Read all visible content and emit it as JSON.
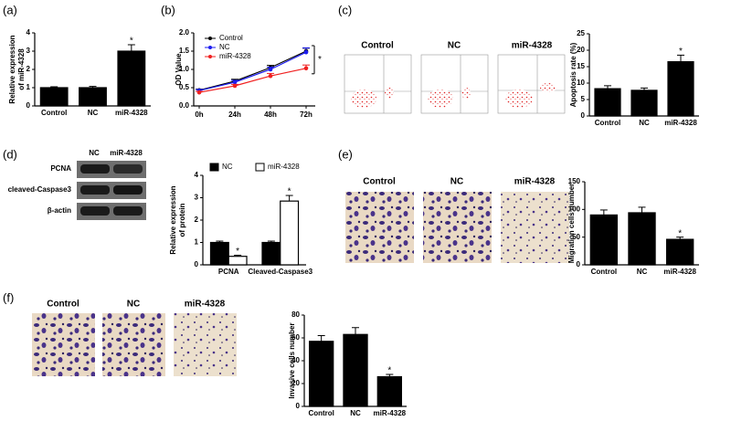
{
  "chart_data": [
    {
      "type": "bar",
      "y_label": [
        "Relative expression",
        "of miR-4328"
      ],
      "categories": [
        "Control",
        "NC",
        "miR-4328"
      ],
      "values": [
        1.0,
        1.0,
        3.0
      ],
      "errors": [
        0.05,
        0.07,
        0.35
      ],
      "color": "#000000",
      "ylim": [
        0,
        4
      ],
      "yticks": [
        0,
        1,
        2,
        3,
        4
      ],
      "annotations": [
        {
          "text": "*",
          "category": "miR-4328"
        }
      ]
    },
    {
      "type": "line",
      "y_label": [
        "OD Value"
      ],
      "categories": [
        "0h",
        "24h",
        "48h",
        "72h"
      ],
      "series": [
        {
          "name": "Control",
          "color": "#000000",
          "values": [
            0.43,
            0.68,
            1.05,
            1.5
          ],
          "errors": [
            0.03,
            0.05,
            0.06,
            0.08
          ]
        },
        {
          "name": "NC",
          "color": "#1c1cf0",
          "values": [
            0.42,
            0.65,
            1.0,
            1.47
          ],
          "errors": [
            0.03,
            0.05,
            0.06,
            0.12
          ]
        },
        {
          "name": "miR-4328",
          "color": "#f02020",
          "values": [
            0.37,
            0.55,
            0.82,
            1.03
          ],
          "errors": [
            0.03,
            0.04,
            0.07,
            0.09
          ]
        }
      ],
      "ylim": [
        0,
        2
      ],
      "yticks": [
        {
          "value": 0,
          "label": "0.0"
        },
        {
          "value": 0.5,
          "label": "0.5"
        },
        {
          "value": 1,
          "label": "1.0"
        },
        {
          "value": 1.5,
          "label": "1.5"
        },
        {
          "value": 2,
          "label": "2.0"
        }
      ],
      "legend": "upper left",
      "annotations": [
        {
          "text": "*"
        }
      ]
    },
    {
      "type": "bar",
      "y_label": [
        "Apoptosis rate (%)"
      ],
      "categories": [
        "Control",
        "NC",
        "miR-4328"
      ],
      "values": [
        8.3,
        7.8,
        16.5
      ],
      "errors": [
        0.9,
        0.7,
        2.0
      ],
      "color": "#000000",
      "ylim": [
        0,
        25
      ],
      "yticks": [
        0,
        5,
        10,
        15,
        20,
        25
      ],
      "annotations": [
        {
          "text": "*",
          "category": "miR-4328"
        }
      ]
    },
    {
      "type": "bar",
      "y_label": [
        "Relative expression",
        "of protein"
      ],
      "categories": [
        "PCNA",
        "Cleaved-Caspase3"
      ],
      "series": [
        {
          "name": "NC",
          "color": "#000000",
          "values": [
            1.0,
            1.0
          ],
          "errors": [
            0.06,
            0.06
          ]
        },
        {
          "name": "miR-4328",
          "color": "#ffffff",
          "values": [
            0.38,
            2.85
          ],
          "errors": [
            0.05,
            0.25
          ]
        }
      ],
      "ylim": [
        0,
        4
      ],
      "yticks": [
        0,
        1,
        2,
        3,
        4
      ],
      "legend": "top",
      "annotations": [
        {
          "text": "*",
          "category": "PCNA",
          "series": "miR-4328"
        },
        {
          "text": "*",
          "category": "Cleaved-Caspase3",
          "series": "miR-4328"
        }
      ]
    },
    {
      "type": "bar",
      "y_label": [
        "Migration cells number"
      ],
      "categories": [
        "Control",
        "NC",
        "miR-4328"
      ],
      "values": [
        90,
        94,
        46
      ],
      "errors": [
        9,
        10,
        4
      ],
      "color": "#000000",
      "ylim": [
        0,
        150
      ],
      "yticks": [
        0,
        50,
        100,
        150
      ],
      "annotations": [
        {
          "text": "*",
          "category": "miR-4328"
        }
      ]
    },
    {
      "type": "bar",
      "y_label": [
        "Invasive cells number"
      ],
      "categories": [
        "Control",
        "NC",
        "miR-4328"
      ],
      "values": [
        57,
        63,
        26
      ],
      "errors": [
        5,
        6,
        2
      ],
      "color": "#000000",
      "ylim": [
        0,
        80
      ],
      "yticks": [
        0,
        20,
        40,
        60,
        80
      ],
      "annotations": [
        {
          "text": "*",
          "category": "miR-4328"
        }
      ]
    }
  ],
  "figure": {
    "panel_labels": [
      "(a)",
      "(b)",
      "(c)",
      "(d)",
      "(e)",
      "(f)"
    ],
    "flow_titles": [
      "Control",
      "NC",
      "miR-4328"
    ],
    "blot_lanes": [
      "NC",
      "miR-4328"
    ],
    "blot_rows": [
      "PCNA",
      "cleaved-Caspase3",
      "β-actin"
    ],
    "migration_titles": [
      "Control",
      "NC",
      "miR-4328"
    ],
    "invasion_titles": [
      "Control",
      "NC",
      "miR-4328"
    ]
  }
}
